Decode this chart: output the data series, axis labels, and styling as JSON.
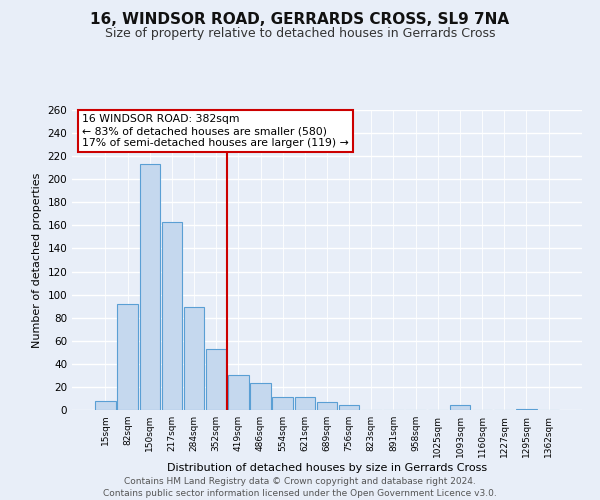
{
  "title": "16, WINDSOR ROAD, GERRARDS CROSS, SL9 7NA",
  "subtitle": "Size of property relative to detached houses in Gerrards Cross",
  "xlabel": "Distribution of detached houses by size in Gerrards Cross",
  "ylabel": "Number of detached properties",
  "bar_labels": [
    "15sqm",
    "82sqm",
    "150sqm",
    "217sqm",
    "284sqm",
    "352sqm",
    "419sqm",
    "486sqm",
    "554sqm",
    "621sqm",
    "689sqm",
    "756sqm",
    "823sqm",
    "891sqm",
    "958sqm",
    "1025sqm",
    "1093sqm",
    "1160sqm",
    "1227sqm",
    "1295sqm",
    "1362sqm"
  ],
  "bar_values": [
    8,
    92,
    213,
    163,
    89,
    53,
    30,
    23,
    11,
    11,
    7,
    4,
    0,
    0,
    0,
    0,
    4,
    0,
    0,
    1,
    0
  ],
  "bar_color": "#c5d8ee",
  "bar_edge_color": "#5a9fd4",
  "vline_x": 5.5,
  "vline_color": "#cc0000",
  "annotation_title": "16 WINDSOR ROAD: 382sqm",
  "annotation_line1": "← 83% of detached houses are smaller (580)",
  "annotation_line2": "17% of semi-detached houses are larger (119) →",
  "annotation_box_color": "#ffffff",
  "annotation_box_edge": "#cc0000",
  "ylim": [
    0,
    260
  ],
  "yticks": [
    0,
    20,
    40,
    60,
    80,
    100,
    120,
    140,
    160,
    180,
    200,
    220,
    240,
    260
  ],
  "bg_color": "#e8eef8",
  "plot_bg_color": "#e8eef8",
  "footer1": "Contains HM Land Registry data © Crown copyright and database right 2024.",
  "footer2": "Contains public sector information licensed under the Open Government Licence v3.0.",
  "title_fontsize": 11,
  "subtitle_fontsize": 9,
  "footer_fontsize": 6.5
}
